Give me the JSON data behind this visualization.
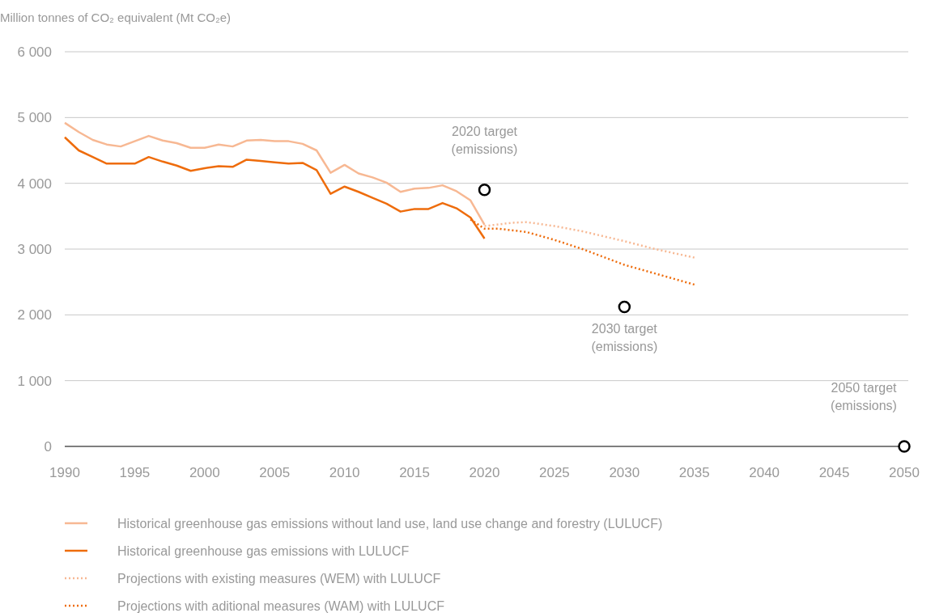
{
  "chart_data": {
    "type": "line",
    "ylabel": "Million tonnes of CO₂ equivalent (Mt CO₂e)",
    "xlim": [
      1990,
      2050
    ],
    "xticks": [
      1990,
      1995,
      2000,
      2005,
      2010,
      2015,
      2020,
      2025,
      2030,
      2035,
      2040,
      2045,
      2050
    ],
    "ylim": [
      0,
      6000
    ],
    "yticks": [
      {
        "value": 0,
        "label": "0"
      },
      {
        "value": 1000,
        "label": "1 000"
      },
      {
        "value": 2000,
        "label": "2 000"
      },
      {
        "value": 3000,
        "label": "3 000"
      },
      {
        "value": 4000,
        "label": "4 000"
      },
      {
        "value": 5000,
        "label": "5 000"
      },
      {
        "value": 6000,
        "label": "6 000"
      }
    ],
    "grid": "y",
    "legend": "bottom",
    "series": [
      {
        "name": "Historical greenhouse gas emissions without land use, land use change and forestry (LULUCF)",
        "color": "#f7b893",
        "line_style": "solid",
        "x": [
          1990,
          1991,
          1992,
          1993,
          1994,
          1995,
          1996,
          1997,
          1998,
          1999,
          2000,
          2001,
          2002,
          2003,
          2004,
          2005,
          2006,
          2007,
          2008,
          2009,
          2010,
          2011,
          2012,
          2013,
          2014,
          2015,
          2016,
          2017,
          2018,
          2019,
          2020
        ],
        "values": [
          4920,
          4780,
          4660,
          4590,
          4560,
          4640,
          4720,
          4650,
          4610,
          4540,
          4540,
          4590,
          4560,
          4650,
          4660,
          4640,
          4640,
          4600,
          4500,
          4160,
          4280,
          4150,
          4090,
          4010,
          3870,
          3920,
          3930,
          3970,
          3880,
          3740,
          3370
        ]
      },
      {
        "name": "Historical greenhouse gas emissions with LULUCF",
        "color": "#ee6c0c",
        "line_style": "solid",
        "x": [
          1990,
          1991,
          1992,
          1993,
          1994,
          1995,
          1996,
          1997,
          1998,
          1999,
          2000,
          2001,
          2002,
          2003,
          2004,
          2005,
          2006,
          2007,
          2008,
          2009,
          2010,
          2011,
          2012,
          2013,
          2014,
          2015,
          2016,
          2017,
          2018,
          2019,
          2020
        ],
        "values": [
          4700,
          4500,
          4400,
          4300,
          4300,
          4300,
          4400,
          4330,
          4270,
          4190,
          4230,
          4260,
          4250,
          4360,
          4340,
          4320,
          4300,
          4310,
          4200,
          3840,
          3950,
          3870,
          3780,
          3690,
          3570,
          3610,
          3610,
          3700,
          3620,
          3480,
          3160
        ]
      },
      {
        "name": "Projections with existing measures (WEM) with LULUCF",
        "color": "#f7b893",
        "line_style": "dotted",
        "x": [
          2020,
          2022,
          2023,
          2025,
          2027,
          2030,
          2032,
          2035
        ],
        "values": [
          3350,
          3400,
          3410,
          3350,
          3270,
          3120,
          3010,
          2870
        ]
      },
      {
        "name": "Projections with aditional measures (WAM) with LULUCF",
        "color": "#ee6c0c",
        "line_style": "dotted",
        "x": [
          2019,
          2020,
          2021,
          2023,
          2025,
          2027,
          2030,
          2032,
          2035
        ],
        "values": [
          3450,
          3310,
          3310,
          3260,
          3140,
          3000,
          2760,
          2640,
          2460
        ]
      },
      {
        "type": "scatter",
        "color": "#000000",
        "marker": "circle",
        "x": [
          2020,
          2030,
          2050
        ],
        "values": [
          3900,
          2120,
          0
        ]
      }
    ],
    "annotations": [
      {
        "text": "2020 target\n(emissions)",
        "x": 2020,
        "y": 3900
      },
      {
        "text": "2030 target\n(emissions)",
        "x": 2030,
        "y": 2120
      },
      {
        "text": "2050 target\n(emissions)",
        "x": 2050,
        "y": 0
      }
    ]
  }
}
